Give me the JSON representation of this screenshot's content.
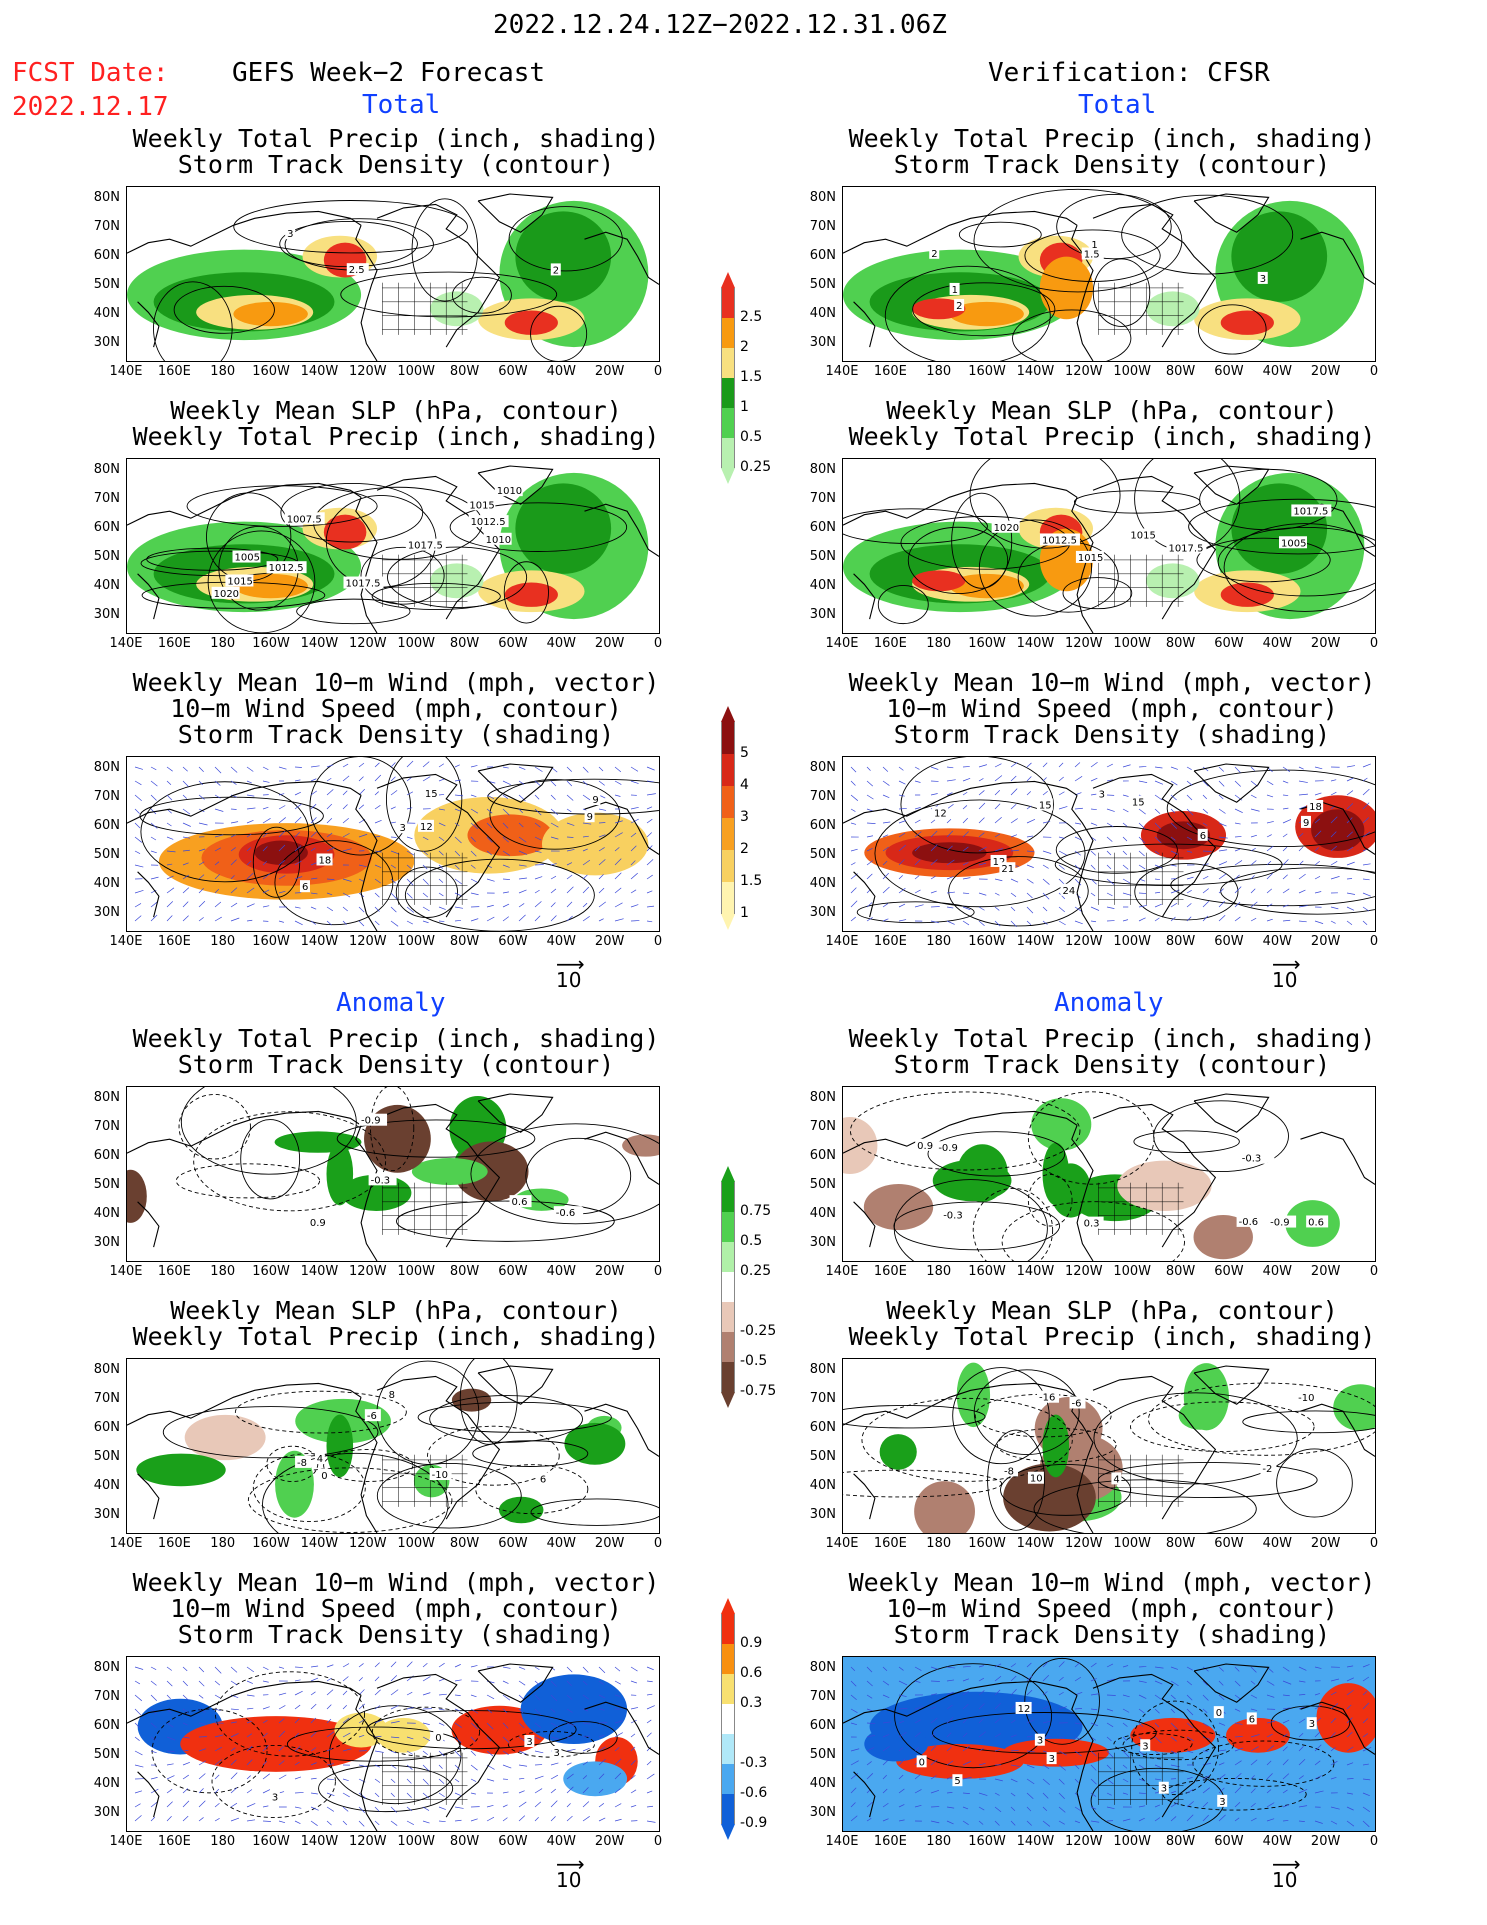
{
  "date_range": "2022.12.24.12Z−2022.12.31.06Z",
  "fcst_label": "FCST Date:",
  "fcst_date": "2022.12.17",
  "left_header": "GEFS Week−2 Forecast",
  "right_header": "Verification: CFSR",
  "section_total": "Total",
  "section_anomaly": "Anomaly",
  "titles": {
    "precip_track": [
      "Weekly Total Precip (inch, shading)",
      "Storm Track Density (contour)"
    ],
    "slp_precip": [
      "Weekly Mean SLP (hPa, contour)",
      "Weekly Total Precip (inch, shading)"
    ],
    "wind_track": [
      "Weekly Mean 10−m Wind (mph, vector)",
      "10−m Wind Speed (mph, contour)",
      "Storm Track Density (shading)"
    ]
  },
  "lat_ticks": [
    "80N",
    "70N",
    "60N",
    "50N",
    "40N",
    "30N"
  ],
  "lon_ticks": [
    "140E",
    "160E",
    "180",
    "160W",
    "140W",
    "120W",
    "100W",
    "80W",
    "60W",
    "40W",
    "20W",
    "0"
  ],
  "vector_ref": "10",
  "colorbars": {
    "precip_total": {
      "labels": [
        "2.5",
        "2",
        "1.5",
        "1",
        "0.5",
        "0.25"
      ],
      "colors": [
        "#e83020",
        "#f89a10",
        "#f8e080",
        "#1a9a1a",
        "#50d050",
        "#b8f0b0"
      ]
    },
    "track_total": {
      "labels": [
        "5",
        "4",
        "3",
        "2",
        "1.5",
        "1"
      ],
      "colors": [
        "#8c1010",
        "#d82818",
        "#f06018",
        "#f8a020",
        "#f8d060",
        "#fff4b0"
      ]
    },
    "precip_anom": {
      "labels": [
        "0.75",
        "0.5",
        "0.25",
        "-0.25",
        "-0.5",
        "-0.75"
      ],
      "colors": [
        "#1aa01a",
        "#50d050",
        "#b0f0a8",
        "#ffffff",
        "#e8c8b8",
        "#b08070",
        "#6a4030"
      ]
    },
    "track_anom": {
      "labels": [
        "0.9",
        "0.6",
        "0.3",
        "-0.3",
        "-0.6",
        "-0.9"
      ],
      "colors": [
        "#f03010",
        "#f89010",
        "#f8e070",
        "#ffffff",
        "#b0e8f8",
        "#4aa8f0",
        "#1060d8"
      ]
    }
  },
  "contour_labels": {
    "p1_left": [
      "3",
      "2",
      "2.5"
    ],
    "p1_right": [
      "1.5",
      "3",
      "2",
      "1",
      "1",
      "2"
    ],
    "p2_left": [
      "1010",
      "1007.5",
      "1012.5",
      "1015",
      "1017.5",
      "1010",
      "1020",
      "1017.5",
      "1015",
      "1012.5",
      "1005"
    ],
    "p2_right": [
      "1017.5",
      "1020",
      "1015",
      "1012.5",
      "1015",
      "1017.5",
      "1005"
    ],
    "p3_left": [
      "6",
      "15",
      "9",
      "12",
      "9",
      "18",
      "3"
    ],
    "p3_right": [
      "3",
      "15",
      "6",
      "12",
      "18",
      "21",
      "24",
      "9",
      "12",
      "15"
    ],
    "p4_left": [
      "0.6",
      "0.3",
      "0.9",
      "-0.3",
      "-0.9",
      "-0.6"
    ],
    "p4_right": [
      "0.6",
      "-0.9",
      "0.9",
      "-0.3",
      "0.3",
      "-0.6",
      "-0.3",
      "-0.9",
      "-0.3"
    ],
    "p5_left": [
      "4",
      "-8",
      "-10",
      "0",
      "6",
      "8",
      "-6"
    ],
    "p5_right": [
      "4",
      "-8",
      "-16",
      "-10",
      "-2",
      "-6",
      "10"
    ],
    "p6_left": [
      "3",
      "0",
      "3",
      "3"
    ],
    "p6_right": [
      "0",
      "3",
      "3",
      "6",
      "3",
      "3",
      "0",
      "12",
      "3",
      "5",
      "3"
    ]
  }
}
